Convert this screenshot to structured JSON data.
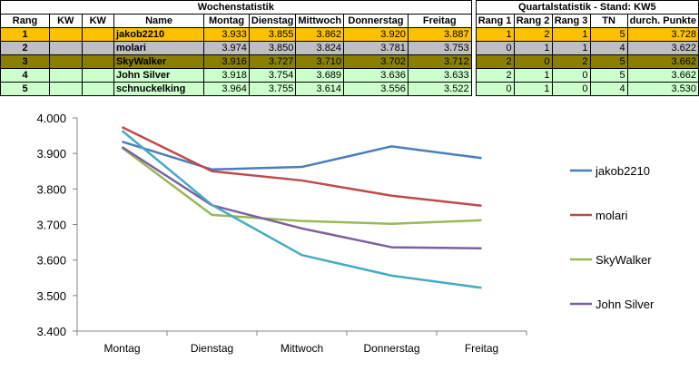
{
  "table": {
    "title_weekly": "Wochenstatistik",
    "title_quarterly": "Quartalstatistik - Stand: KW5",
    "headers": [
      "Rang",
      "KW",
      "KW",
      "Name",
      "Montag",
      "Dienstag",
      "Mittwoch",
      "Donnerstag",
      "Freitag",
      "Rang 1",
      "Rang 2",
      "Rang 3",
      "TN",
      "durch. Punkte"
    ],
    "rows": [
      {
        "rang": "1",
        "kw1": "",
        "kw2": "",
        "name": "jakob2210",
        "mo": "3.933",
        "di": "3.855",
        "mi": "3.862",
        "do": "3.920",
        "fr": "3.887",
        "r1": "1",
        "r2": "2",
        "r3": "1",
        "tn": "5",
        "avg": "3.728"
      },
      {
        "rang": "2",
        "kw1": "",
        "kw2": "",
        "name": "molari",
        "mo": "3.974",
        "di": "3.850",
        "mi": "3.824",
        "do": "3.781",
        "fr": "3.753",
        "r1": "0",
        "r2": "1",
        "r3": "1",
        "tn": "4",
        "avg": "3.622"
      },
      {
        "rang": "3",
        "kw1": "",
        "kw2": "",
        "name": "SkyWalker",
        "mo": "3.916",
        "di": "3.727",
        "mi": "3.710",
        "do": "3.702",
        "fr": "3.712",
        "r1": "2",
        "r2": "0",
        "r3": "2",
        "tn": "5",
        "avg": "3.662"
      },
      {
        "rang": "4",
        "kw1": "",
        "kw2": "",
        "name": "John Silver",
        "mo": "3.918",
        "di": "3.754",
        "mi": "3.689",
        "do": "3.636",
        "fr": "3.633",
        "r1": "2",
        "r2": "1",
        "r3": "0",
        "tn": "5",
        "avg": "3.662"
      },
      {
        "rang": "5",
        "kw1": "",
        "kw2": "",
        "name": "schnuckelking",
        "mo": "3.964",
        "di": "3.755",
        "mi": "3.614",
        "do": "3.556",
        "fr": "3.522",
        "r1": "0",
        "r2": "1",
        "r3": "0",
        "tn": "4",
        "avg": "3.530"
      }
    ]
  },
  "chart_data": {
    "type": "line",
    "categories": [
      "Montag",
      "Dienstag",
      "Mittwoch",
      "Donnerstag",
      "Freitag"
    ],
    "ylim": [
      3.4,
      4.0
    ],
    "yticks": [
      "3.400",
      "3.500",
      "3.600",
      "3.700",
      "3.800",
      "3.900",
      "4.000"
    ],
    "grid": false,
    "legend_position": "right",
    "series": [
      {
        "name": "jakob2210",
        "color": "#4a7ebb",
        "values": [
          3.933,
          3.855,
          3.862,
          3.92,
          3.887
        ]
      },
      {
        "name": "molari",
        "color": "#be4b48",
        "values": [
          3.974,
          3.85,
          3.824,
          3.781,
          3.753
        ]
      },
      {
        "name": "SkyWalker",
        "color": "#98b954",
        "values": [
          3.916,
          3.727,
          3.71,
          3.702,
          3.712
        ]
      },
      {
        "name": "John Silver",
        "color": "#7d60a0",
        "values": [
          3.918,
          3.754,
          3.689,
          3.636,
          3.633
        ]
      },
      {
        "name": "",
        "color": "#46aac5",
        "values": [
          3.964,
          3.755,
          3.614,
          3.556,
          3.522
        ]
      }
    ]
  }
}
